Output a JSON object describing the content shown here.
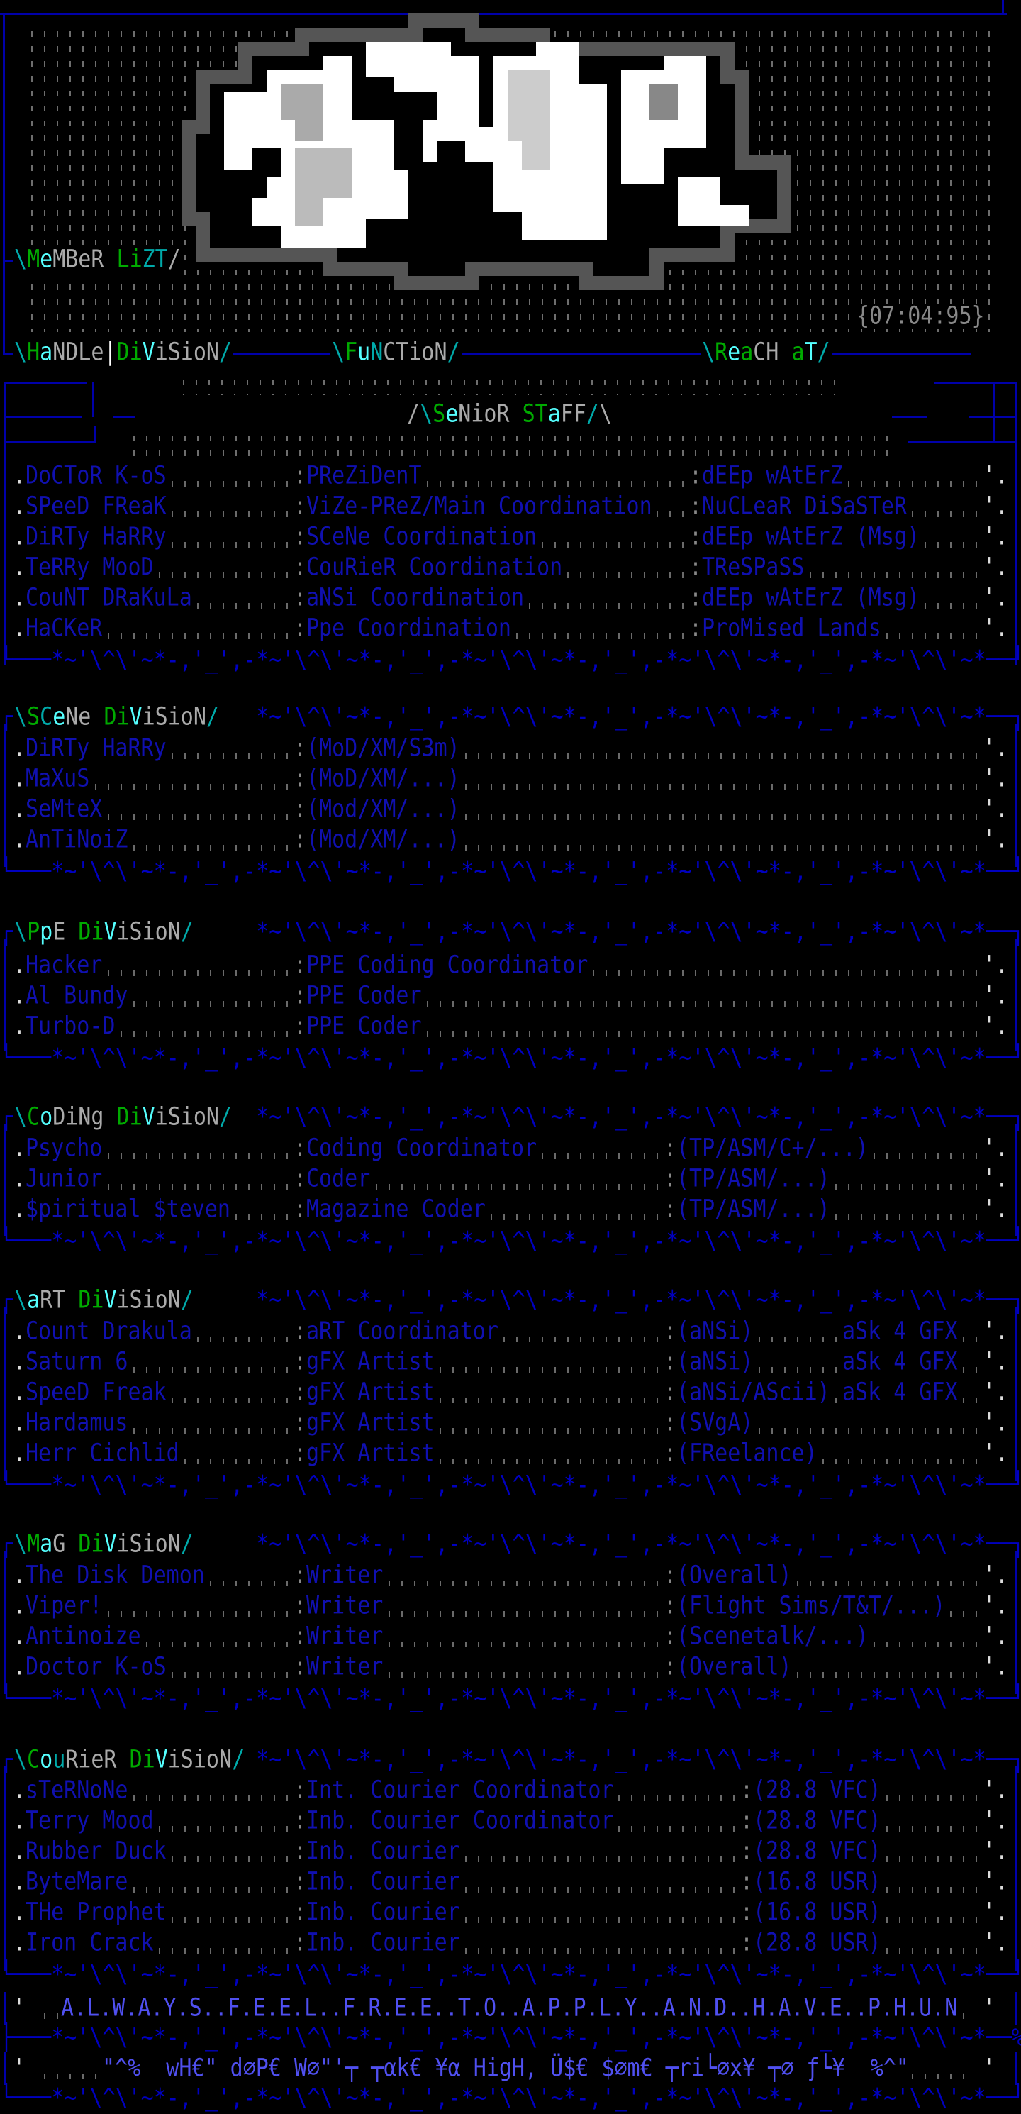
{
  "colors": {
    "text_blue": "#1010b0",
    "border_blue": "#0000aa",
    "green": "#00aa00",
    "cyan": "#00aaaa",
    "bright_cyan": "#55ffff",
    "gray": "#aaaaaa",
    "footer_blue": "#5050f0"
  },
  "header": {
    "member_list_title": [
      [
        "\\",
        "#00aaaa"
      ],
      [
        "M",
        "#00aa00"
      ],
      [
        "e",
        "#55ffff"
      ],
      [
        "MBeR ",
        "#aaaaaa"
      ],
      [
        "L",
        "#00aa00"
      ],
      [
        "i",
        "#00aa00"
      ],
      [
        "ZT",
        "#00aaaa"
      ],
      [
        "/",
        "#aaaaaa"
      ]
    ],
    "date": "{07:04:95}",
    "columns": [
      [
        [
          "\\",
          "#00aaaa"
        ],
        [
          "H",
          "#00aa00"
        ],
        [
          "a",
          "#55ffff"
        ],
        [
          "NDLe",
          "#aaaaaa"
        ],
        [
          "|",
          "#ffffff"
        ],
        [
          "D",
          "#00aa00"
        ],
        [
          "i",
          "#00aa00"
        ],
        [
          "V",
          "#55ffff"
        ],
        [
          "iSioN",
          "#aaaaaa"
        ],
        [
          "/",
          "#00aaaa"
        ]
      ],
      [
        [
          "\\",
          "#00aaaa"
        ],
        [
          "F",
          "#00aa00"
        ],
        [
          "u",
          "#55ffff"
        ],
        [
          "N",
          "#00aaaa"
        ],
        [
          "CTioN",
          "#aaaaaa"
        ],
        [
          "/",
          "#00aaaa"
        ]
      ],
      [
        [
          "\\",
          "#00aaaa"
        ],
        [
          "R",
          "#00aa00"
        ],
        [
          "e",
          "#55ffff"
        ],
        [
          "a",
          "#00aa00"
        ],
        [
          "CH ",
          "#aaaaaa"
        ],
        [
          "a",
          "#00aa00"
        ],
        [
          "T",
          "#55ffff"
        ],
        [
          "/",
          "#00aaaa"
        ]
      ]
    ]
  },
  "wave": {
    "top": "~'\\^\\'~",
    "bottom": ",'_',"
  },
  "sections": [
    {
      "id": "senior-staff",
      "title": [
        [
          "/",
          "#aaaaaa"
        ],
        [
          "\\",
          "#00aaaa"
        ],
        [
          "S",
          "#00aa00"
        ],
        [
          "e",
          "#55ffff"
        ],
        [
          "NioR ",
          "#aaaaaa"
        ],
        [
          "S",
          "#00aa00"
        ],
        [
          "T",
          "#00aa00"
        ],
        [
          "a",
          "#55ffff"
        ],
        [
          "FF",
          "#aaaaaa"
        ],
        [
          "/",
          "#00aaaa"
        ],
        [
          "\\",
          "#aaaaaa"
        ]
      ],
      "rows": [
        {
          "name": "DoCToR K-oS",
          "role": "PReZiDenT",
          "reach": "dEEp wAtErZ"
        },
        {
          "name": "SPeeD FReaK",
          "role": "ViZe-PReZ/Main Coordination",
          "reach": "NuCLeaR DiSaSTeR"
        },
        {
          "name": "DiRTy HaRRy",
          "role": "SCeNe Coordination",
          "reach": "dEEp wAtErZ (Msg)"
        },
        {
          "name": "TeRRy MooD",
          "role": "CouRieR Coordination",
          "reach": "TReSPaSS"
        },
        {
          "name": "CouNT DRaKuLa",
          "role": "aNSi Coordination",
          "reach": "dEEp wAtErZ (Msg)"
        },
        {
          "name": "HaCKeR",
          "role": "Ppe Coordination",
          "reach": "ProMised Lands"
        }
      ]
    },
    {
      "id": "scene-division",
      "title": [
        [
          "\\",
          "#00aaaa"
        ],
        [
          "S",
          "#00aa00"
        ],
        [
          "C",
          "#00aaaa"
        ],
        [
          "e",
          "#55ffff"
        ],
        [
          "Ne ",
          "#aaaaaa"
        ],
        [
          "D",
          "#00aa00"
        ],
        [
          "i",
          "#00aa00"
        ],
        [
          "V",
          "#55ffff"
        ],
        [
          "iSioN",
          "#aaaaaa"
        ],
        [
          "/",
          "#00aaaa"
        ]
      ],
      "rows": [
        {
          "name": "DiRTy HaRRy",
          "role": "(MoD/XM/S3m)"
        },
        {
          "name": "MaXuS",
          "role": "(MoD/XM/...)"
        },
        {
          "name": "SeMteX",
          "role": "(Mod/XM/...)"
        },
        {
          "name": "AnTiNoiZ",
          "role": "(Mod/XM/...)"
        }
      ]
    },
    {
      "id": "ppe-division",
      "title": [
        [
          "\\",
          "#00aaaa"
        ],
        [
          "P",
          "#00aa00"
        ],
        [
          "p",
          "#55ffff"
        ],
        [
          "E ",
          "#aaaaaa"
        ],
        [
          "D",
          "#00aa00"
        ],
        [
          "i",
          "#00aa00"
        ],
        [
          "V",
          "#55ffff"
        ],
        [
          "iSioN",
          "#aaaaaa"
        ],
        [
          "/",
          "#00aaaa"
        ]
      ],
      "rows": [
        {
          "name": "Hacker",
          "role": "PPE Coding Coordinator"
        },
        {
          "name": "Al Bundy",
          "role": "PPE Coder"
        },
        {
          "name": "Turbo-D",
          "role": "PPE Coder"
        }
      ]
    },
    {
      "id": "coding-division",
      "title": [
        [
          "\\",
          "#00aaaa"
        ],
        [
          "C",
          "#00aa00"
        ],
        [
          "o",
          "#55ffff"
        ],
        [
          "DiNg ",
          "#aaaaaa"
        ],
        [
          "D",
          "#00aa00"
        ],
        [
          "i",
          "#00aa00"
        ],
        [
          "V",
          "#55ffff"
        ],
        [
          "iSioN",
          "#aaaaaa"
        ],
        [
          "/",
          "#00aaaa"
        ]
      ],
      "rows": [
        {
          "name": "Psycho",
          "role": "Coding Coordinator",
          "reach": "(TP/ASM/C+/...)"
        },
        {
          "name": "Junior",
          "role": "Coder",
          "reach": "(TP/ASM/...)"
        },
        {
          "name": "$piritual $teven",
          "role": "Magazine Coder",
          "reach": "(TP/ASM/...)"
        }
      ]
    },
    {
      "id": "art-division",
      "title": [
        [
          "\\",
          "#00aaaa"
        ],
        [
          "a",
          "#55ffff"
        ],
        [
          "RT ",
          "#aaaaaa"
        ],
        [
          "D",
          "#00aa00"
        ],
        [
          "i",
          "#00aa00"
        ],
        [
          "V",
          "#55ffff"
        ],
        [
          "iSioN",
          "#aaaaaa"
        ],
        [
          "/",
          "#00aaaa"
        ]
      ],
      "rows": [
        {
          "name": "Count Drakula",
          "role": "aRT Coordinator",
          "reach": "(aNSi)",
          "note": "aSk 4 GFX"
        },
        {
          "name": "Saturn 6",
          "role": "gFX Artist",
          "reach": "(aNSi)",
          "note": "aSk 4 GFX"
        },
        {
          "name": "SpeeD Freak",
          "role": "gFX Artist",
          "reach": "(aNSi/AScii)",
          "note": "aSk 4 GFX"
        },
        {
          "name": "Hardamus",
          "role": "gFX Artist",
          "reach": "(SVgA)"
        },
        {
          "name": "Herr Cichlid",
          "role": "gFX Artist",
          "reach": "(FReelance)"
        }
      ]
    },
    {
      "id": "mag-division",
      "title": [
        [
          "\\",
          "#00aaaa"
        ],
        [
          "M",
          "#00aa00"
        ],
        [
          "a",
          "#55ffff"
        ],
        [
          "G ",
          "#aaaaaa"
        ],
        [
          "D",
          "#00aa00"
        ],
        [
          "i",
          "#00aa00"
        ],
        [
          "V",
          "#55ffff"
        ],
        [
          "iSioN",
          "#aaaaaa"
        ],
        [
          "/",
          "#00aaaa"
        ]
      ],
      "rows": [
        {
          "name": "The Disk Demon",
          "role": "Writer",
          "reach": "(Overall)"
        },
        {
          "name": "Viper!",
          "role": "Writer",
          "reach": "(Flight Sims/T&T/...)"
        },
        {
          "name": "Antinoize",
          "role": "Writer",
          "reach": "(Scenetalk/...)"
        },
        {
          "name": "Doctor K-oS",
          "role": "Writer",
          "reach": "(Overall)"
        }
      ]
    },
    {
      "id": "courier-division",
      "title": [
        [
          "\\",
          "#00aaaa"
        ],
        [
          "C",
          "#00aa00"
        ],
        [
          "o",
          "#55ffff"
        ],
        [
          "u",
          "#00aaaa"
        ],
        [
          "RieR ",
          "#aaaaaa"
        ],
        [
          "D",
          "#00aa00"
        ],
        [
          "i",
          "#00aa00"
        ],
        [
          "V",
          "#55ffff"
        ],
        [
          "iSioN",
          "#aaaaaa"
        ],
        [
          "/",
          "#00aaaa"
        ]
      ],
      "rows": [
        {
          "name": "sTeRNoNe",
          "role": "Int. Courier Coordinator",
          "reach": "(28.8 VFC)"
        },
        {
          "name": "Terry Mood",
          "role": "Inb. Courier Coordinator",
          "reach": "(28.8 VFC)"
        },
        {
          "name": "Rubber Duck",
          "role": "Inb. Courier",
          "reach": "(28.8 VFC)"
        },
        {
          "name": "ByteMare",
          "role": "Inb. Courier",
          "reach": "(16.8 USR)"
        },
        {
          "name": "THe Prophet",
          "role": "Inb. Courier",
          "reach": "(16.8 USR)"
        },
        {
          "name": "Iron Crack",
          "role": "Inb. Courier",
          "reach": "(28.8 USR)"
        }
      ]
    }
  ],
  "footer": {
    "motto": "A.L.W.A.Y.S..F.E.E.L..F.R.E.E..T.O..A.P.P.L.Y..A.N.D..H.A.V.E..P.H.U.N",
    "slogan": "\"^%  wH€\" d⌀P€ W⌀\"'┬ ┬αk€ ¥α HigH, Ü$€ $⌀m€ ┬ri└⌀x¥ ┬⌀ ƒ└¥  %^\""
  }
}
